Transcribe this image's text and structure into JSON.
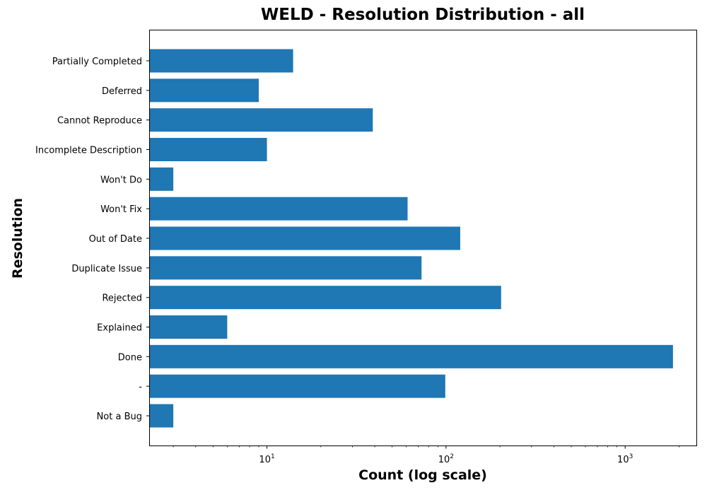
{
  "chart_data": {
    "type": "bar",
    "orientation": "horizontal",
    "title": "WELD - Resolution Distribution - all",
    "xlabel": "Count (log scale)",
    "ylabel": "Resolution",
    "x_scale": "log",
    "xlim": [
      2.2,
      2500
    ],
    "x_ticks": [
      {
        "value": 10,
        "base": "10",
        "exp": "1"
      },
      {
        "value": 100,
        "base": "10",
        "exp": "2"
      },
      {
        "value": 1000,
        "base": "10",
        "exp": "3"
      }
    ],
    "categories": [
      "Partially Completed",
      "Deferred",
      "Cannot Reproduce",
      "Incomplete Description",
      "Won't Do",
      "Won't Fix",
      "Out of Date",
      "Duplicate Issue",
      "Rejected",
      "Explained",
      "Done",
      "-",
      "Not a Bug"
    ],
    "values": [
      14,
      9,
      39,
      10,
      3,
      61,
      120,
      73,
      203,
      6,
      1850,
      99,
      3
    ],
    "grid": false,
    "colors": {
      "bar": "#1f77b4",
      "axis": "#000000"
    }
  }
}
